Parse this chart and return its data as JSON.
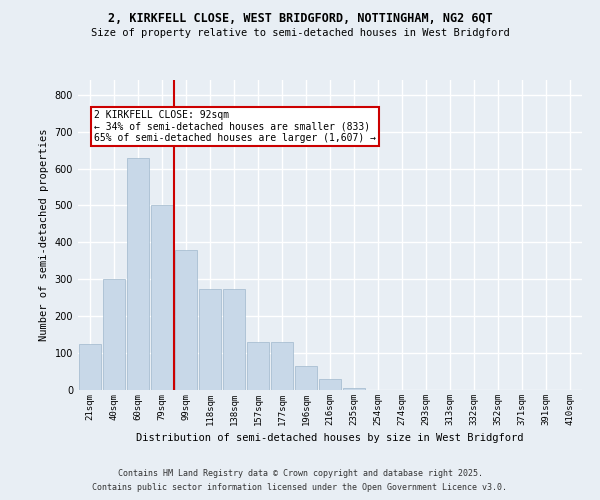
{
  "title1": "2, KIRKFELL CLOSE, WEST BRIDGFORD, NOTTINGHAM, NG2 6QT",
  "title2": "Size of property relative to semi-detached houses in West Bridgford",
  "xlabel": "Distribution of semi-detached houses by size in West Bridgford",
  "ylabel": "Number of semi-detached properties",
  "footnote1": "Contains HM Land Registry data © Crown copyright and database right 2025.",
  "footnote2": "Contains public sector information licensed under the Open Government Licence v3.0.",
  "bin_labels": [
    "21sqm",
    "40sqm",
    "60sqm",
    "79sqm",
    "99sqm",
    "118sqm",
    "138sqm",
    "157sqm",
    "177sqm",
    "196sqm",
    "216sqm",
    "235sqm",
    "254sqm",
    "274sqm",
    "293sqm",
    "313sqm",
    "332sqm",
    "352sqm",
    "371sqm",
    "391sqm",
    "410sqm"
  ],
  "bar_heights": [
    125,
    300,
    630,
    500,
    380,
    275,
    275,
    130,
    130,
    65,
    30,
    5,
    0,
    0,
    0,
    0,
    0,
    0,
    0,
    0,
    0
  ],
  "bar_color": "#c8d8e8",
  "bar_edge_color": "#a0b8cc",
  "bg_color": "#e8eef4",
  "grid_color": "#ffffff",
  "vline_color": "#cc0000",
  "annotation_text": "2 KIRKFELL CLOSE: 92sqm\n← 34% of semi-detached houses are smaller (833)\n65% of semi-detached houses are larger (1,607) →",
  "annotation_box_color": "#cc0000",
  "ylim": [
    0,
    840
  ],
  "yticks": [
    0,
    100,
    200,
    300,
    400,
    500,
    600,
    700,
    800
  ]
}
